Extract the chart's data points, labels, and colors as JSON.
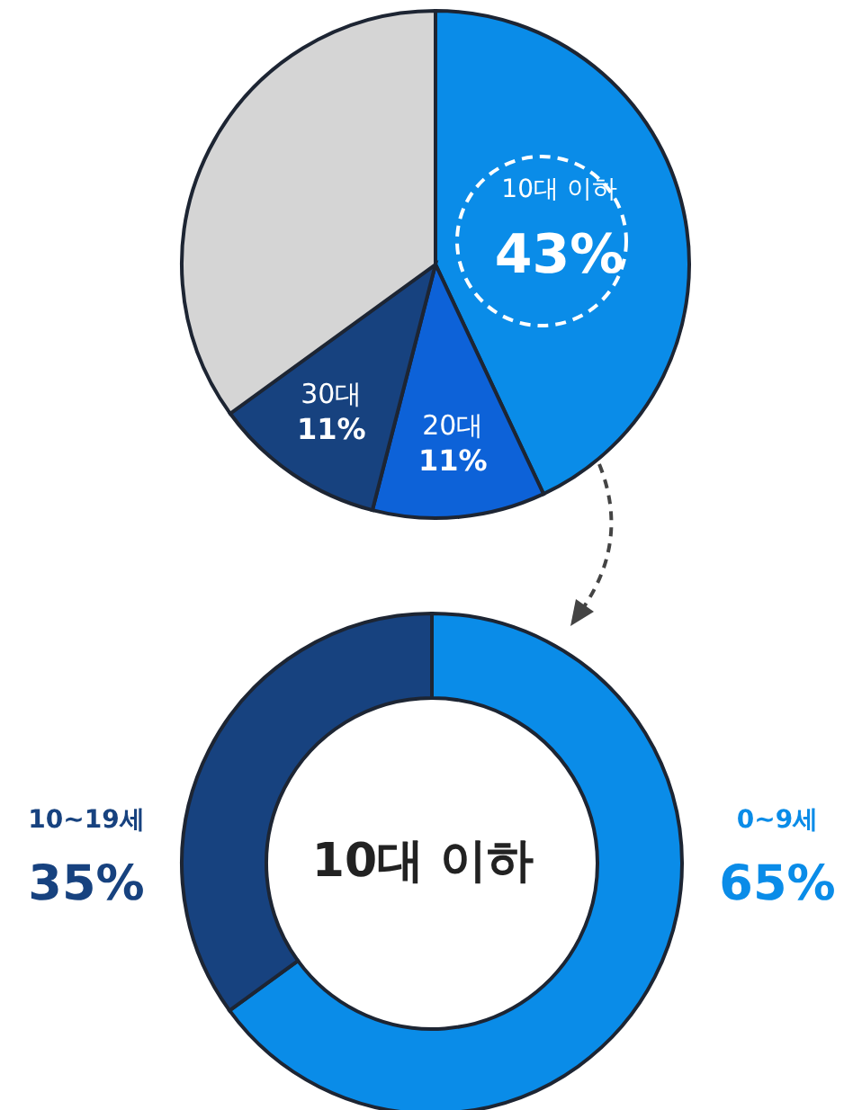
{
  "chart_data": [
    {
      "type": "pie",
      "categories": [
        "10대 이하",
        "20대",
        "30대",
        null
      ],
      "values": [
        43,
        11,
        11,
        35
      ],
      "value_labels": [
        "43%",
        "11%",
        "11%",
        null
      ],
      "colors": [
        "#0a8ce8",
        "#0d62d8",
        "#17427f",
        "#d5d5d5"
      ],
      "legend": false
    },
    {
      "type": "donut",
      "title": "10대 이하",
      "categories": [
        "0~9세",
        "10~19세"
      ],
      "values": [
        65,
        35
      ],
      "value_labels": [
        "65%",
        "35%"
      ],
      "colors": [
        "#0a8ce8",
        "#17427f"
      ],
      "legend": false
    }
  ]
}
